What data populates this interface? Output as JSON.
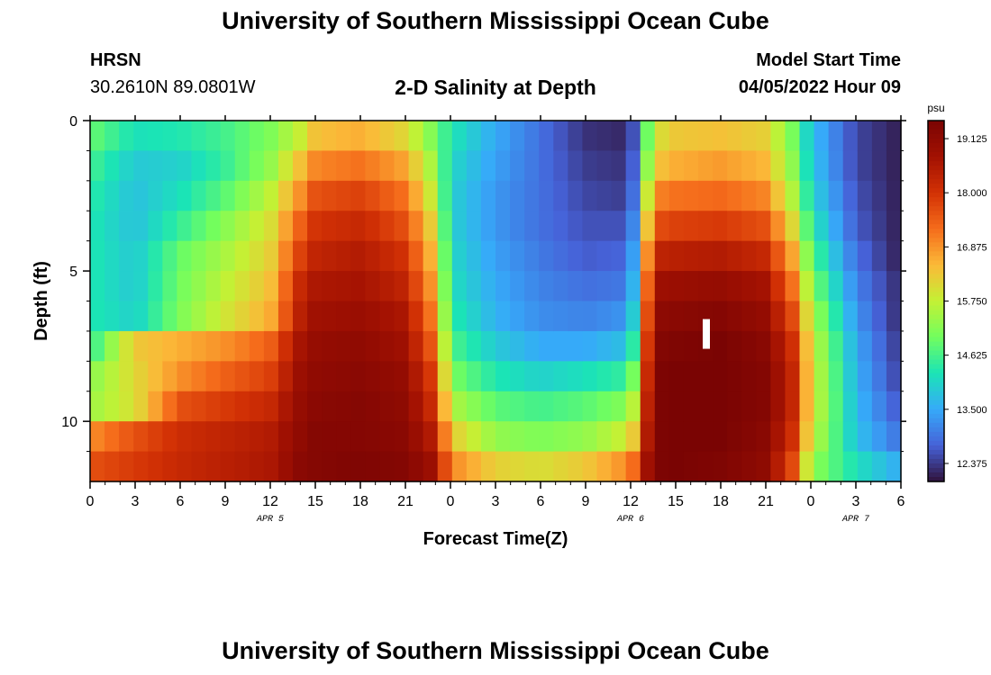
{
  "header": {
    "title": "University of Southern Mississippi Ocean Cube",
    "station": "HRSN",
    "coords": "30.2610N  89.0801W",
    "product": "2-D Salinity at Depth",
    "start_label": "Model Start Time",
    "start_value": "04/05/2022 Hour 09"
  },
  "footer": {
    "title": "University of Southern Mississippi Ocean Cube"
  },
  "chart_data": {
    "type": "heatmap",
    "title": "2-D Salinity at Depth",
    "xlabel": "Forecast Time(Z)",
    "ylabel": "Depth (ft)",
    "x_range_hours": [
      0,
      54
    ],
    "y_range_ft": [
      0,
      12
    ],
    "x_ticks": [
      {
        "h": 0,
        "label": "0"
      },
      {
        "h": 3,
        "label": "3"
      },
      {
        "h": 6,
        "label": "6"
      },
      {
        "h": 9,
        "label": "9"
      },
      {
        "h": 12,
        "label": "12"
      },
      {
        "h": 15,
        "label": "15"
      },
      {
        "h": 18,
        "label": "18"
      },
      {
        "h": 21,
        "label": "21"
      },
      {
        "h": 24,
        "label": "0"
      },
      {
        "h": 27,
        "label": "3"
      },
      {
        "h": 30,
        "label": "6"
      },
      {
        "h": 33,
        "label": "9"
      },
      {
        "h": 36,
        "label": "12"
      },
      {
        "h": 39,
        "label": "15"
      },
      {
        "h": 42,
        "label": "18"
      },
      {
        "h": 45,
        "label": "21"
      },
      {
        "h": 48,
        "label": "0"
      },
      {
        "h": 51,
        "label": "3"
      },
      {
        "h": 54,
        "label": "6"
      }
    ],
    "y_ticks": [
      {
        "ft": 0,
        "label": "0"
      },
      {
        "ft": 5,
        "label": "5"
      },
      {
        "ft": 10,
        "label": "10"
      }
    ],
    "date_labels": [
      {
        "h": 12,
        "label": "APR 5"
      },
      {
        "h": 36,
        "label": "APR 6"
      },
      {
        "h": 51,
        "label": "APR 7"
      }
    ],
    "colorbar": {
      "unit": "psu",
      "min": 12.0,
      "max": 19.5,
      "tick_values": [
        19.125,
        18.0,
        16.875,
        15.75,
        14.625,
        13.5,
        12.375
      ],
      "tick_labels": [
        "19.125",
        "18.000",
        "16.875",
        "15.750",
        "14.625",
        "13.500",
        "12.375"
      ]
    },
    "columns": 56,
    "depth_layers": 12,
    "time_steps_hours": [
      0,
      3,
      6,
      9,
      12,
      14,
      15,
      18,
      21,
      23,
      24,
      27,
      30,
      33,
      36,
      37.5,
      39,
      42,
      45,
      47,
      48,
      51,
      54
    ],
    "salinity_profiles": [
      [
        14.9,
        14.6,
        14.4,
        14.3,
        14.3,
        14.3,
        14.3,
        14.4,
        15.2,
        15.4,
        16.9,
        17.6
      ],
      [
        14.2,
        13.9,
        13.8,
        13.8,
        13.9,
        13.9,
        14.0,
        16.3,
        16.1,
        16.0,
        17.6,
        17.9
      ],
      [
        14.3,
        14.0,
        14.2,
        14.5,
        14.9,
        15.0,
        15.1,
        16.6,
        16.9,
        17.6,
        18.1,
        18.2
      ],
      [
        14.6,
        14.5,
        14.8,
        15.2,
        15.5,
        15.7,
        15.9,
        16.9,
        17.4,
        17.9,
        18.3,
        18.4
      ],
      [
        15.1,
        15.3,
        15.7,
        16.0,
        16.2,
        16.4,
        16.6,
        17.4,
        17.8,
        18.2,
        18.5,
        18.6
      ],
      [
        15.8,
        16.4,
        16.9,
        17.4,
        17.8,
        18.2,
        18.4,
        18.7,
        18.9,
        19.0,
        19.1,
        19.2
      ],
      [
        16.4,
        17.0,
        17.6,
        18.0,
        18.3,
        18.6,
        18.8,
        19.0,
        19.1,
        19.2,
        19.3,
        19.3
      ],
      [
        16.6,
        17.2,
        17.8,
        18.2,
        18.5,
        18.7,
        18.9,
        19.1,
        19.2,
        19.3,
        19.3,
        19.4
      ],
      [
        16.1,
        16.7,
        17.2,
        17.6,
        18.0,
        18.3,
        18.6,
        18.8,
        19.0,
        19.1,
        19.2,
        19.3
      ],
      [
        15.0,
        15.3,
        15.6,
        16.0,
        16.3,
        16.6,
        16.9,
        17.3,
        17.7,
        18.0,
        18.4,
        18.8
      ],
      [
        14.3,
        14.1,
        14.0,
        14.0,
        14.1,
        14.2,
        14.4,
        14.7,
        15.1,
        15.6,
        16.3,
        17.0
      ],
      [
        13.5,
        13.4,
        13.3,
        13.3,
        13.4,
        13.5,
        13.6,
        13.9,
        14.3,
        14.8,
        15.3,
        16.2
      ],
      [
        12.9,
        12.9,
        12.9,
        12.9,
        13.0,
        13.1,
        13.2,
        13.5,
        14.0,
        14.6,
        15.1,
        16.0
      ],
      [
        12.3,
        12.4,
        12.5,
        12.6,
        12.7,
        12.9,
        13.1,
        13.5,
        14.2,
        14.8,
        15.3,
        16.3
      ],
      [
        12.2,
        12.3,
        12.4,
        12.6,
        12.8,
        13.0,
        13.3,
        13.8,
        14.5,
        15.2,
        15.9,
        17.0
      ],
      [
        15.9,
        16.3,
        17.0,
        17.6,
        18.3,
        18.8,
        19.1,
        19.3,
        19.4,
        19.4,
        19.4,
        19.4
      ],
      [
        16.3,
        16.6,
        17.2,
        17.8,
        18.4,
        18.9,
        19.2,
        19.4,
        19.5,
        19.5,
        19.5,
        19.5
      ],
      [
        16.4,
        16.8,
        17.3,
        17.9,
        18.5,
        19.0,
        19.3,
        19.5,
        19.5,
        19.5,
        19.5,
        19.4
      ],
      [
        16.2,
        16.5,
        17.0,
        17.6,
        18.2,
        18.7,
        19.0,
        19.2,
        19.3,
        19.3,
        19.2,
        19.1
      ],
      [
        14.9,
        15.1,
        15.4,
        15.9,
        16.5,
        17.0,
        17.5,
        17.9,
        18.1,
        18.1,
        17.9,
        17.5
      ],
      [
        13.8,
        13.9,
        14.1,
        14.4,
        14.8,
        15.2,
        15.6,
        15.9,
        16.0,
        16.0,
        15.8,
        15.3
      ],
      [
        12.5,
        12.5,
        12.6,
        12.7,
        12.9,
        13.1,
        13.3,
        13.5,
        13.6,
        13.7,
        13.8,
        14.2
      ],
      [
        12.1,
        12.1,
        12.1,
        12.1,
        12.1,
        12.2,
        12.2,
        12.3,
        12.4,
        12.6,
        12.9,
        13.5
      ]
    ]
  }
}
